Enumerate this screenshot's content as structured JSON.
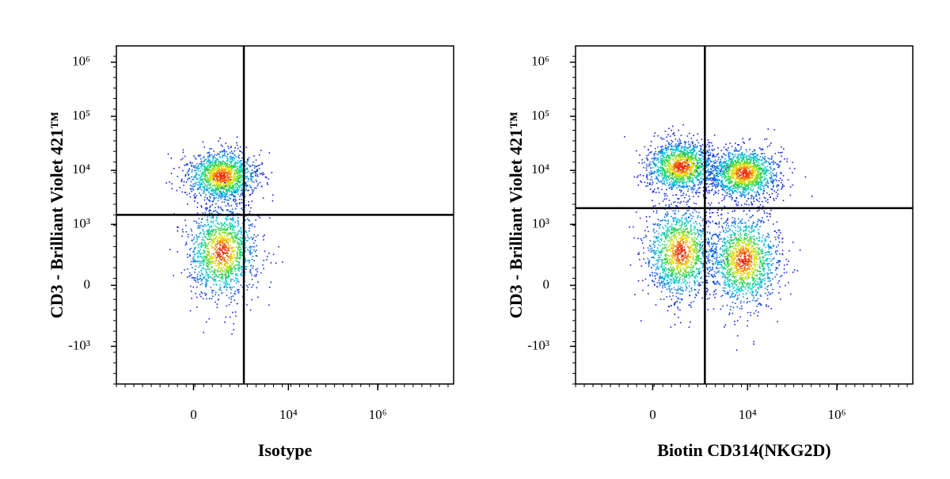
{
  "chart_data": [
    {
      "type": "density-dot",
      "x_label": "Isotype",
      "y_label": "CD3 - Brilliant Violet 421™",
      "scale": "asinh",
      "xlim": [
        -4000,
        50000000
      ],
      "ylim": [
        -5000,
        2000000
      ],
      "xticks": [
        {
          "value": 0,
          "label": "0"
        },
        {
          "value": 10000,
          "label": "10⁴"
        },
        {
          "value": 1000000,
          "label": "10⁶"
        }
      ],
      "yticks": [
        {
          "value": 1000000,
          "label": "10⁶"
        },
        {
          "value": 100000,
          "label": "10⁵"
        },
        {
          "value": 10000,
          "label": "10⁴"
        },
        {
          "value": 1000,
          "label": "10³"
        },
        {
          "value": 0,
          "label": "0"
        },
        {
          "value": -1000,
          "label": "-10³"
        }
      ],
      "gate_x": 1000,
      "gate_y": 1500,
      "populations": [
        {
          "x": 300,
          "y": 8000
        },
        {
          "x": 300,
          "y": 300
        }
      ]
    },
    {
      "type": "density-dot",
      "x_label": "Biotin CD314(NKG2D)",
      "y_label": "CD3 - Brilliant Violet 421™",
      "scale": "asinh",
      "xlim": [
        -4000,
        50000000
      ],
      "ylim": [
        -5000,
        2000000
      ],
      "xticks": [
        {
          "value": 0,
          "label": "0"
        },
        {
          "value": 10000,
          "label": "10⁴"
        },
        {
          "value": 1000000,
          "label": "10⁶"
        }
      ],
      "yticks": [
        {
          "value": 1000000,
          "label": "10⁶"
        },
        {
          "value": 100000,
          "label": "10⁵"
        },
        {
          "value": 10000,
          "label": "10⁴"
        },
        {
          "value": 1000,
          "label": "10³"
        },
        {
          "value": 0,
          "label": "0"
        },
        {
          "value": -1000,
          "label": "-10³"
        }
      ],
      "gate_x": 1100,
      "gate_y": 2000,
      "populations": [
        {
          "x": 300,
          "y": 12000
        },
        {
          "x": 8000,
          "y": 9000
        },
        {
          "x": 300,
          "y": 300
        },
        {
          "x": 8000,
          "y": 200
        }
      ]
    }
  ]
}
